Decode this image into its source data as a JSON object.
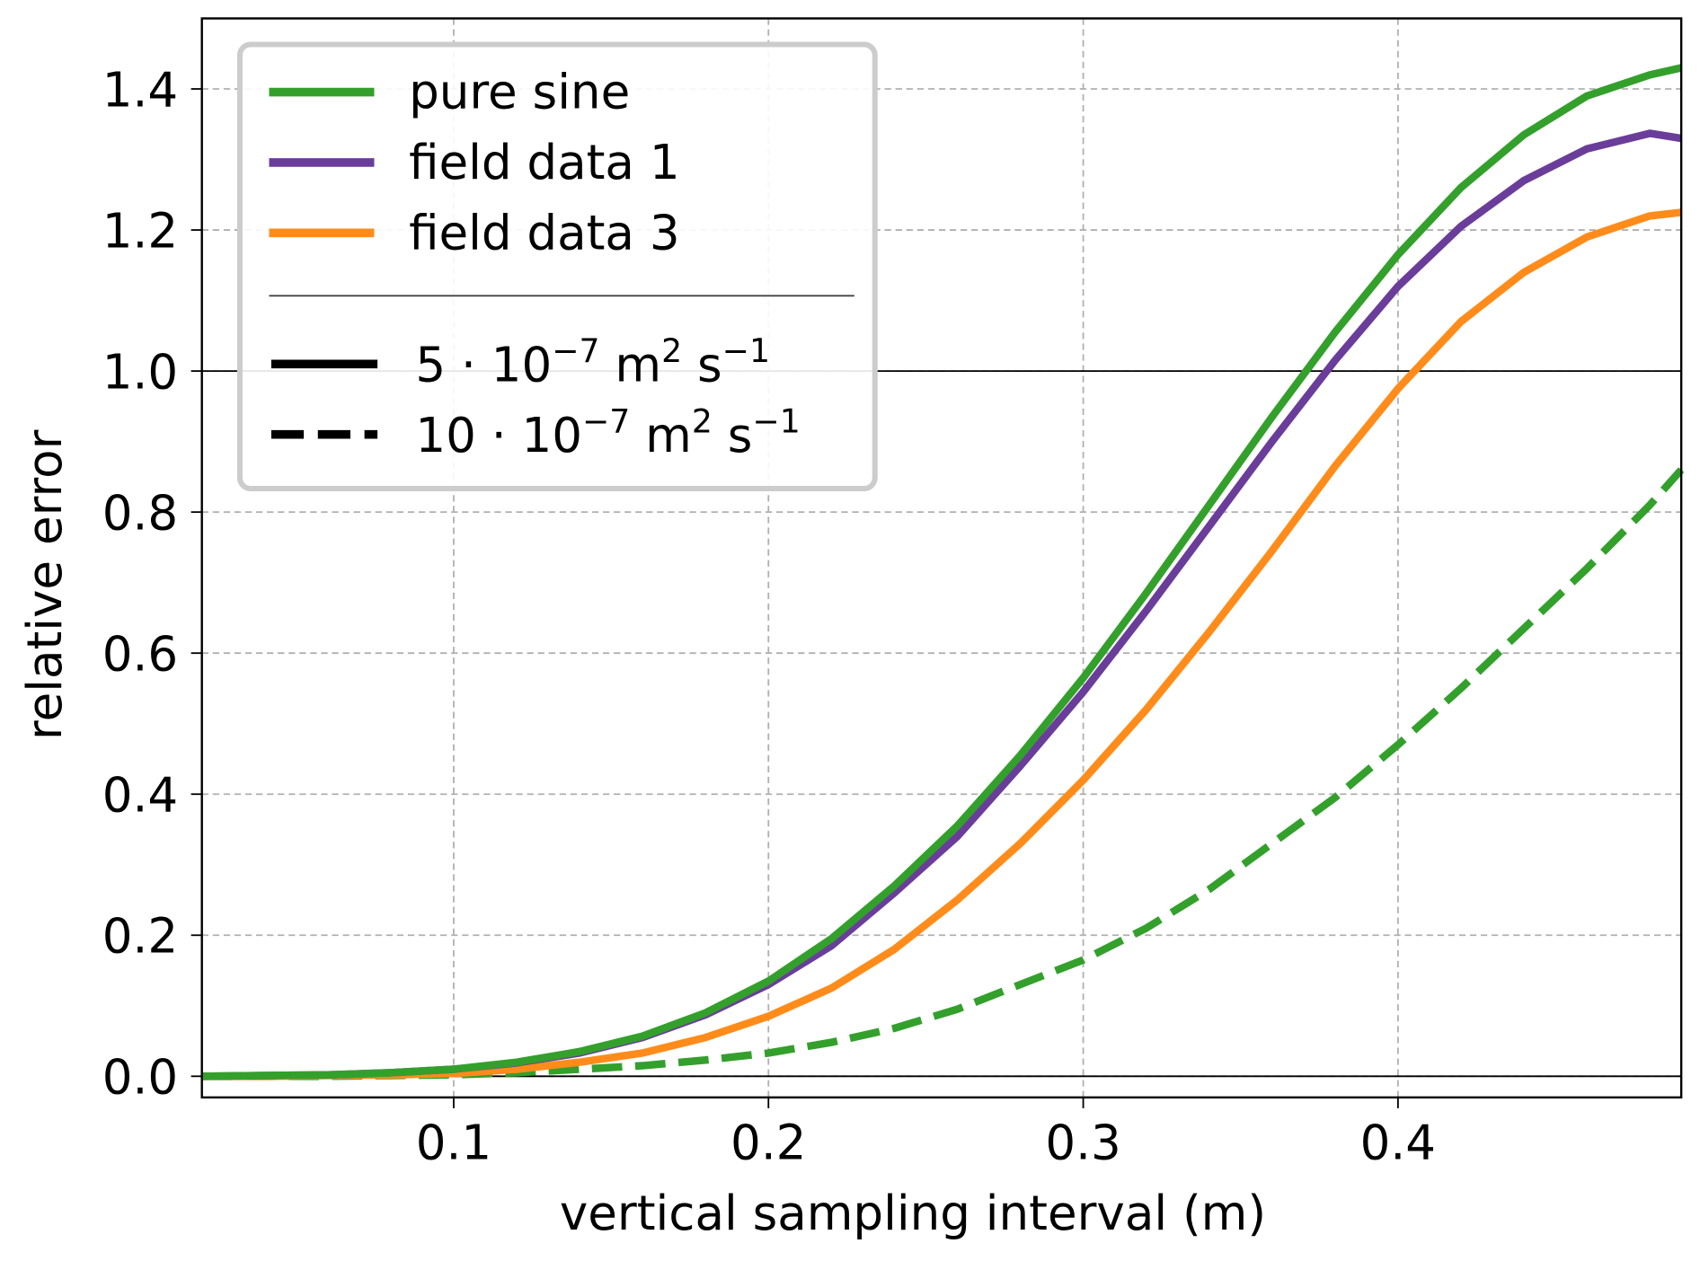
{
  "chart_data": {
    "type": "line",
    "title": "",
    "xlabel": "vertical sampling interval (m)",
    "ylabel": "relative error",
    "xlim": [
      0.02,
      0.49
    ],
    "ylim": [
      -0.03,
      1.5
    ],
    "xticks": [
      0.1,
      0.2,
      0.3,
      0.4
    ],
    "xtick_labels": [
      "0.1",
      "0.2",
      "0.3",
      "0.4"
    ],
    "yticks": [
      0.0,
      0.2,
      0.4,
      0.6,
      0.8,
      1.0,
      1.2,
      1.4
    ],
    "ytick_labels": [
      "0.0",
      "0.2",
      "0.4",
      "0.6",
      "0.8",
      "1.0",
      "1.2",
      "1.4"
    ],
    "grid": true,
    "reference_lines_y": [
      0.0,
      1.0
    ],
    "legend_position": "top-left",
    "x": [
      0.02,
      0.04,
      0.06,
      0.08,
      0.1,
      0.12,
      0.14,
      0.16,
      0.18,
      0.2,
      0.22,
      0.24,
      0.26,
      0.28,
      0.3,
      0.32,
      0.34,
      0.36,
      0.38,
      0.4,
      0.42,
      0.44,
      0.46,
      0.48,
      0.49
    ],
    "series": [
      {
        "name": "pure sine",
        "diffusivity": "5",
        "style": "solid",
        "color": "#33a02c",
        "values": [
          0,
          0.001,
          0.002,
          0.005,
          0.01,
          0.02,
          0.035,
          0.057,
          0.09,
          0.135,
          0.195,
          0.27,
          0.355,
          0.455,
          0.565,
          0.685,
          0.81,
          0.935,
          1.055,
          1.165,
          1.26,
          1.335,
          1.39,
          1.42,
          1.43
        ]
      },
      {
        "name": "field data 1",
        "diffusivity": "5",
        "style": "solid",
        "color": "#6a3d9a",
        "values": [
          0,
          0.001,
          0.002,
          0.005,
          0.01,
          0.019,
          0.033,
          0.055,
          0.087,
          0.13,
          0.185,
          0.26,
          0.34,
          0.44,
          0.545,
          0.66,
          0.78,
          0.9,
          1.015,
          1.12,
          1.205,
          1.27,
          1.315,
          1.337,
          1.33
        ]
      },
      {
        "name": "field data 3",
        "diffusivity": "5",
        "style": "solid",
        "color": "#ff8c1a",
        "values": [
          0,
          0,
          0.001,
          0.002,
          0.004,
          0.01,
          0.02,
          0.033,
          0.055,
          0.085,
          0.125,
          0.18,
          0.25,
          0.33,
          0.42,
          0.52,
          0.63,
          0.745,
          0.865,
          0.975,
          1.07,
          1.14,
          1.19,
          1.22,
          1.225
        ]
      },
      {
        "name": "pure sine",
        "diffusivity": "10",
        "style": "dashed",
        "color": "#33a02c",
        "values": [
          0,
          0,
          0,
          0.001,
          0.002,
          0.005,
          0.01,
          0.015,
          0.023,
          0.033,
          0.048,
          0.068,
          0.095,
          0.13,
          0.165,
          0.21,
          0.265,
          0.33,
          0.395,
          0.47,
          0.55,
          0.635,
          0.72,
          0.81,
          0.86
        ]
      }
    ],
    "legend": {
      "color_entries": [
        "pure sine",
        "field data 1",
        "field data 3"
      ],
      "style_entries": [
        {
          "style": "solid",
          "coef": "5",
          "label": "5 · 10",
          "exp": "−7",
          "unit": " m",
          "unit_exp": "2",
          "s": " s",
          "s_exp": "−1"
        },
        {
          "style": "dashed",
          "coef": "10",
          "label": "10 · 10",
          "exp": "−7",
          "unit": " m",
          "unit_exp": "2",
          "s": " s",
          "s_exp": "−1"
        }
      ]
    }
  }
}
